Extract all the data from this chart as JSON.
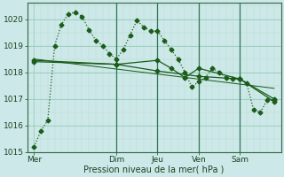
{
  "title": "",
  "xlabel": "Pression niveau de la mer( hPa )",
  "bg_color": "#cce8e8",
  "grid_color_major": "#99ccbb",
  "grid_color_minor": "#bbddcc",
  "line_color": "#1a5c1a",
  "ylim": [
    1015.0,
    1020.6
  ],
  "xlim": [
    0,
    37
  ],
  "xtick_positions": [
    1,
    13,
    19,
    25,
    31
  ],
  "xtick_labels": [
    "Mer",
    "Dim",
    "Jeu",
    "Ven",
    "Sam"
  ],
  "ytick_positions": [
    1015,
    1016,
    1017,
    1018,
    1019,
    1020
  ],
  "ytick_labels": [
    "1015",
    "1016",
    "1017",
    "1018",
    "1019",
    "1020"
  ],
  "vline_positions": [
    13,
    19,
    25,
    31
  ],
  "series1_x": [
    1,
    2,
    3,
    4,
    5,
    6,
    7,
    8,
    9,
    10,
    11,
    12,
    13,
    14,
    15,
    16,
    17,
    18,
    19,
    20,
    21,
    22,
    23,
    24,
    25,
    26,
    27,
    28,
    29,
    30,
    31,
    32,
    33,
    34,
    35,
    36
  ],
  "series1_y": [
    1015.2,
    1015.8,
    1016.2,
    1019.0,
    1019.8,
    1020.2,
    1020.25,
    1020.1,
    1019.6,
    1019.2,
    1019.0,
    1018.7,
    1018.5,
    1018.85,
    1019.4,
    1019.95,
    1019.7,
    1019.55,
    1019.55,
    1019.2,
    1018.85,
    1018.5,
    1018.0,
    1017.45,
    1017.65,
    1017.8,
    1018.15,
    1018.0,
    1017.8,
    1017.75,
    1017.75,
    1017.6,
    1016.6,
    1016.5,
    1016.95,
    1016.95
  ],
  "series2_x": [
    1,
    13,
    19,
    25,
    31,
    36
  ],
  "series2_y": [
    1018.45,
    1018.3,
    1018.05,
    1017.85,
    1017.75,
    1017.0
  ],
  "series3_x": [
    1,
    36
  ],
  "series3_y": [
    1018.5,
    1017.4
  ],
  "series4_x": [
    1,
    13,
    19,
    21,
    23,
    25,
    31,
    36
  ],
  "series4_y": [
    1018.4,
    1018.3,
    1018.45,
    1018.15,
    1017.8,
    1018.15,
    1017.75,
    1016.9
  ],
  "marker": "D",
  "markersize": 2.5,
  "linewidth": 0.9
}
